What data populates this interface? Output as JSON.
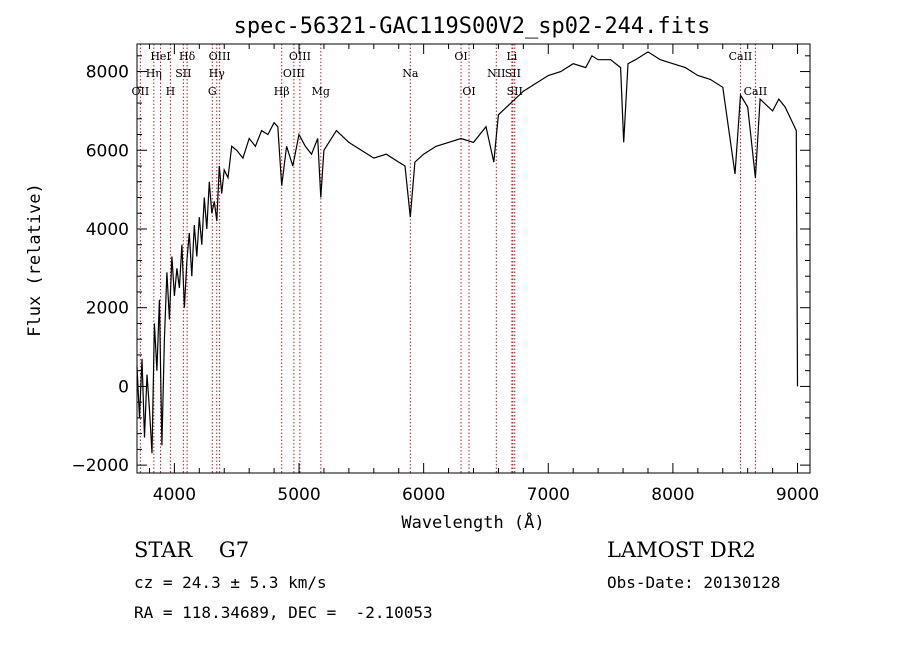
{
  "chart_data": {
    "type": "line",
    "title": "spec-56321-GAC119S00V2_sp02-244.fits",
    "xlabel": "Wavelength (Å)",
    "ylabel": "Flux (relative)",
    "xlim": [
      3700,
      9100
    ],
    "ylim": [
      -2200,
      8700
    ],
    "xticks": [
      4000,
      5000,
      6000,
      7000,
      8000,
      9000
    ],
    "yticks": [
      -2000,
      0,
      2000,
      4000,
      6000,
      8000
    ],
    "grid": false,
    "series": [
      {
        "x": [
          3700,
          3720,
          3740,
          3760,
          3780,
          3800,
          3820,
          3840,
          3860,
          3880,
          3900,
          3920,
          3940,
          3960,
          3980,
          4000,
          4020,
          4040,
          4060,
          4080,
          4100,
          4120,
          4140,
          4160,
          4180,
          4200,
          4220,
          4240,
          4260,
          4280,
          4300,
          4320,
          4340,
          4360,
          4380,
          4400,
          4430,
          4460,
          4500,
          4550,
          4600,
          4650,
          4700,
          4750,
          4800,
          4830,
          4861,
          4900,
          4950,
          5000,
          5050,
          5100,
          5150,
          5175,
          5200,
          5300,
          5400,
          5500,
          5600,
          5700,
          5800,
          5850,
          5893,
          5930,
          6000,
          6100,
          6200,
          6300,
          6400,
          6500,
          6563,
          6600,
          6700,
          6800,
          6900,
          7000,
          7100,
          7200,
          7300,
          7350,
          7400,
          7500,
          7580,
          7605,
          7640,
          7700,
          7800,
          7900,
          8000,
          8100,
          8200,
          8300,
          8400,
          8498,
          8542,
          8600,
          8662,
          8700,
          8800,
          8850,
          8900,
          8960,
          8990,
          9000
        ],
        "y": [
          500,
          -800,
          700,
          -1300,
          300,
          -600,
          -1700,
          1600,
          400,
          2200,
          -1500,
          1200,
          2900,
          1700,
          3300,
          2300,
          3000,
          2500,
          3600,
          2000,
          3200,
          3900,
          2800,
          4100,
          3300,
          4300,
          3600,
          4800,
          4000,
          5200,
          4400,
          4700,
          4200,
          5600,
          4900,
          5500,
          5300,
          6100,
          6000,
          5800,
          6300,
          6100,
          6500,
          6400,
          6700,
          6600,
          5100,
          6100,
          5600,
          6400,
          6100,
          5900,
          6300,
          4800,
          6000,
          6500,
          6200,
          6000,
          5800,
          5900,
          5700,
          5600,
          4300,
          5700,
          5900,
          6100,
          6200,
          6300,
          6200,
          6600,
          5700,
          6900,
          7200,
          7500,
          7700,
          7900,
          8000,
          8200,
          8100,
          8400,
          8300,
          8300,
          8100,
          6200,
          8200,
          8300,
          8500,
          8300,
          8200,
          8100,
          7900,
          7800,
          7600,
          5400,
          7400,
          7100,
          5300,
          7300,
          7000,
          7300,
          7100,
          6700,
          6500,
          0
        ]
      }
    ],
    "line_markers": [
      {
        "label": "OII",
        "x": 3727,
        "row": 3
      },
      {
        "label": "Hη",
        "x": 3835,
        "row": 2
      },
      {
        "label": "HeI",
        "x": 3889,
        "row": 1
      },
      {
        "label": "H",
        "x": 3968,
        "row": 3
      },
      {
        "label": "Hδ",
        "x": 4102,
        "row": 1
      },
      {
        "label": "SII",
        "x": 4072,
        "row": 2
      },
      {
        "label": "G",
        "x": 4304,
        "row": 3
      },
      {
        "label": "OIII",
        "x": 4363,
        "row": 1
      },
      {
        "label": "Hγ",
        "x": 4340,
        "row": 2
      },
      {
        "label": "Hβ",
        "x": 4861,
        "row": 3
      },
      {
        "label": "OIII",
        "x": 4959,
        "row": 2
      },
      {
        "label": "OIII",
        "x": 5007,
        "row": 1
      },
      {
        "label": "Mg",
        "x": 5175,
        "row": 3
      },
      {
        "label": "Na",
        "x": 5893,
        "row": 2
      },
      {
        "label": "OI",
        "x": 6300,
        "row": 1
      },
      {
        "label": "OI",
        "x": 6364,
        "row": 3
      },
      {
        "label": "NII",
        "x": 6583,
        "row": 2
      },
      {
        "label": "Li",
        "x": 6708,
        "row": 1
      },
      {
        "label": "SII",
        "x": 6716,
        "row": 2
      },
      {
        "label": "SII",
        "x": 6731,
        "row": 3
      },
      {
        "label": "CaII",
        "x": 8542,
        "row": 1
      },
      {
        "label": "CaII",
        "x": 8662,
        "row": 3
      }
    ],
    "marker_color": "#b22222",
    "line_color": "#000000"
  },
  "info": {
    "class_line": "STAR    G7",
    "survey": "LAMOST DR2",
    "cz": "cz = 24.3 ± 5.3 km/s",
    "obs_date": "Obs-Date: 20130128",
    "coords": "RA = 118.34689, DEC =  -2.10053"
  }
}
